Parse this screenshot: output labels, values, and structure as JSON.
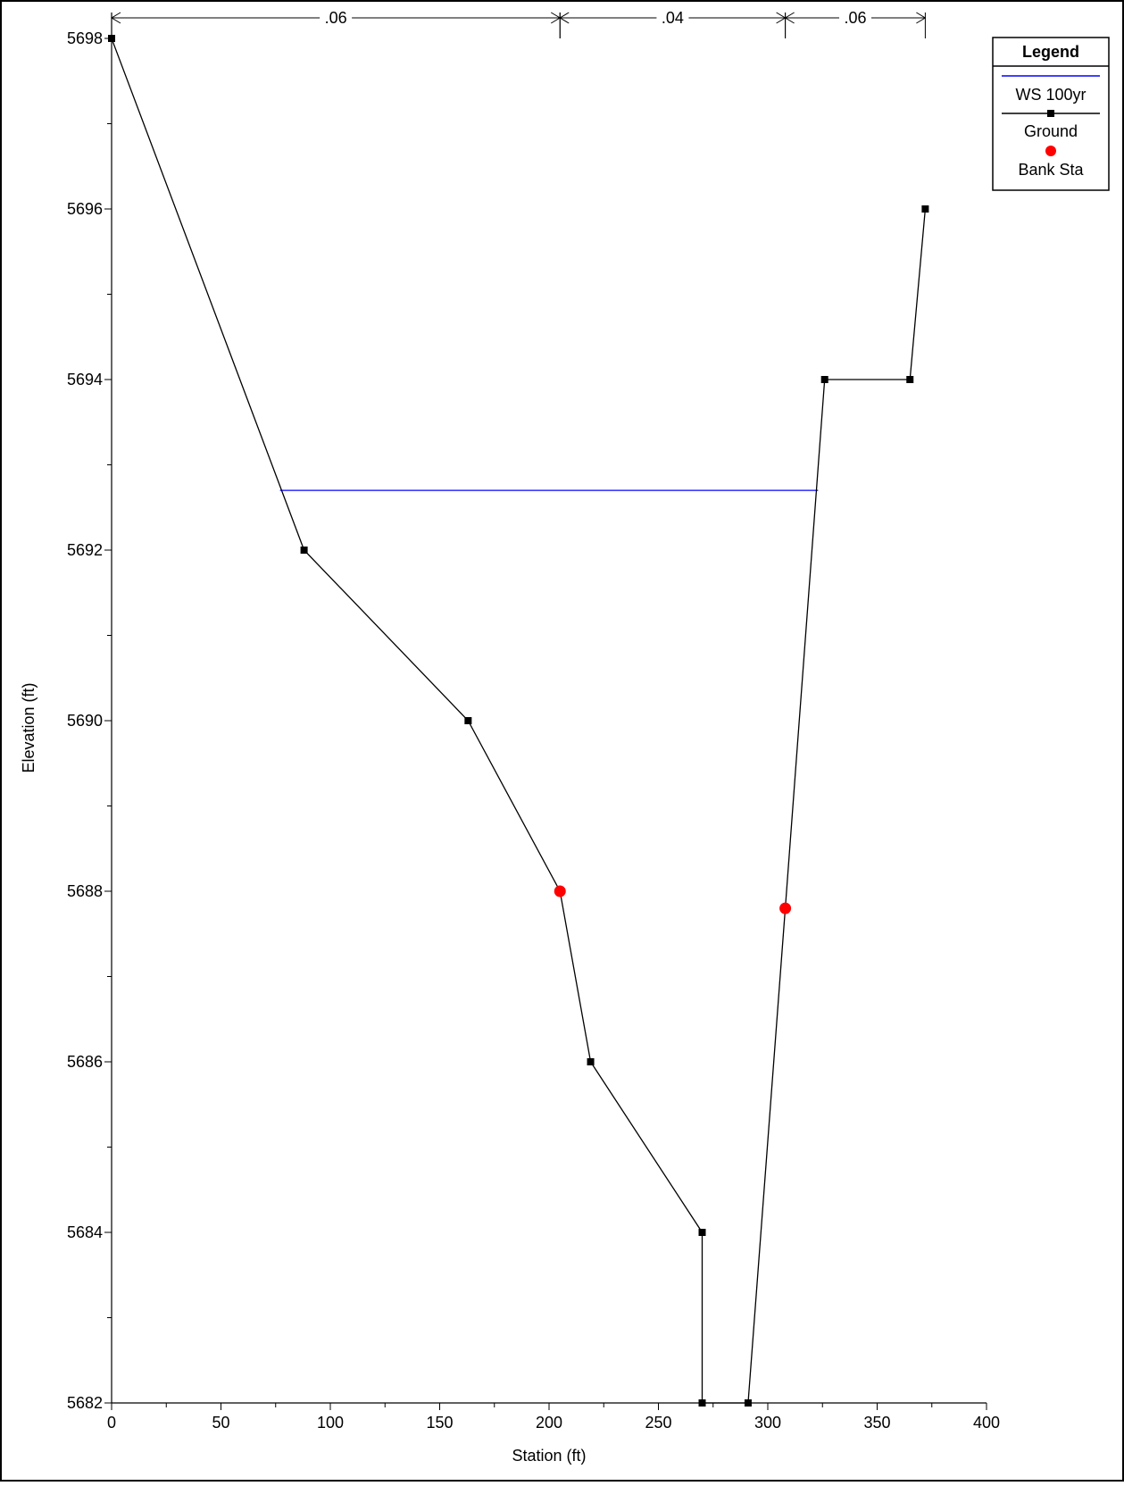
{
  "chart_data": {
    "type": "line",
    "title": "",
    "xlabel": "Station (ft)",
    "ylabel": "Elevation (ft)",
    "xlim": [
      0,
      400
    ],
    "ylim": [
      5682,
      5698
    ],
    "x_ticks": [
      0,
      50,
      100,
      150,
      200,
      250,
      300,
      350,
      400
    ],
    "y_ticks": [
      5682,
      5684,
      5686,
      5688,
      5690,
      5692,
      5694,
      5696,
      5698
    ],
    "x_minor_step": 25,
    "y_minor_step": 1,
    "grid": false,
    "legend": {
      "title": "Legend",
      "placement": "top-right",
      "entries": [
        "WS 100yr",
        "Ground",
        "Bank Sta"
      ]
    },
    "series": [
      {
        "name": "WS 100yr",
        "type": "line",
        "color": "#0000ff",
        "x": [
          77,
          323
        ],
        "y": [
          5692.7,
          5692.7
        ]
      },
      {
        "name": "Ground",
        "type": "line-markers",
        "color": "#000000",
        "x": [
          0,
          88,
          163,
          205,
          219,
          270,
          270,
          291,
          308,
          326,
          365,
          372
        ],
        "y": [
          5698,
          5692,
          5690,
          5688,
          5686,
          5684,
          5682,
          5682,
          5687.8,
          5694,
          5694,
          5696
        ],
        "marker_indices": [
          0,
          1,
          2,
          4,
          5,
          6,
          7,
          9,
          10,
          11
        ]
      },
      {
        "name": "Bank Sta",
        "type": "scatter",
        "color": "#ff0000",
        "x": [
          205,
          308
        ],
        "y": [
          5688,
          5687.8
        ]
      }
    ],
    "roughness": {
      "segments": [
        {
          "label": ".06",
          "from": 0,
          "to": 205
        },
        {
          "label": ".04",
          "from": 205,
          "to": 308
        },
        {
          "label": ".06",
          "from": 308,
          "to": 372
        }
      ]
    }
  }
}
